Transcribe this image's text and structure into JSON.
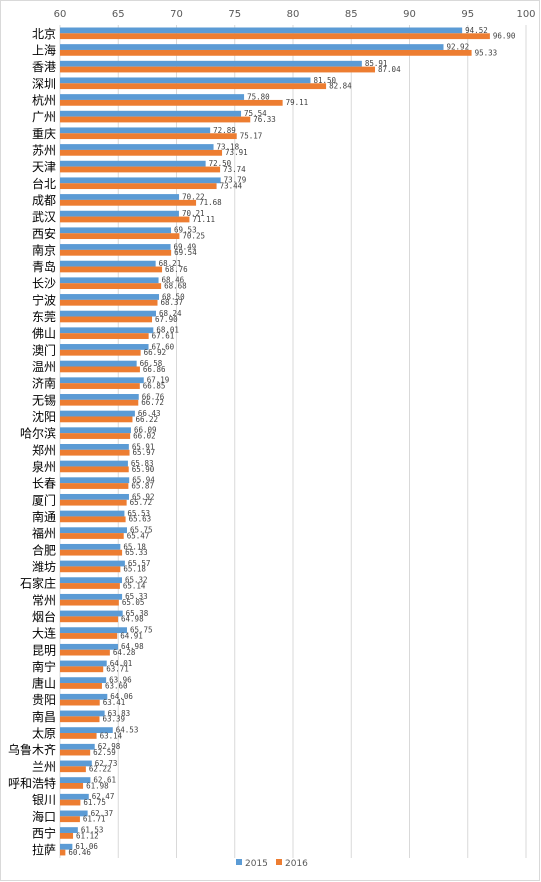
{
  "chart_data": {
    "type": "bar",
    "orientation": "horizontal",
    "xlim": [
      60,
      100
    ],
    "xticks": [
      60,
      65,
      70,
      75,
      80,
      85,
      90,
      95,
      100
    ],
    "grid": true,
    "legend_position": "bottom",
    "categories": [
      "北京",
      "上海",
      "香港",
      "深圳",
      "杭州",
      "广州",
      "重庆",
      "苏州",
      "天津",
      "台北",
      "成都",
      "武汉",
      "西安",
      "南京",
      "青岛",
      "长沙",
      "宁波",
      "东莞",
      "佛山",
      "澳门",
      "温州",
      "济南",
      "无锡",
      "沈阳",
      "哈尔滨",
      "郑州",
      "泉州",
      "长春",
      "厦门",
      "南通",
      "福州",
      "合肥",
      "潍坊",
      "石家庄",
      "常州",
      "烟台",
      "大连",
      "昆明",
      "南宁",
      "唐山",
      "贵阳",
      "南昌",
      "太原",
      "乌鲁木齐",
      "兰州",
      "呼和浩特",
      "银川",
      "海口",
      "西宁",
      "拉萨"
    ],
    "series": [
      {
        "name": "2015",
        "color": "#5b9bd5",
        "values": [
          94.52,
          92.92,
          85.91,
          81.5,
          75.8,
          75.54,
          72.89,
          73.18,
          72.5,
          73.79,
          70.22,
          70.21,
          69.53,
          69.49,
          68.21,
          68.46,
          68.5,
          68.24,
          68.01,
          67.6,
          66.58,
          67.19,
          66.76,
          66.43,
          66.09,
          65.91,
          65.83,
          65.94,
          65.92,
          65.53,
          65.75,
          65.18,
          65.57,
          65.32,
          65.33,
          65.38,
          65.75,
          64.98,
          64.01,
          63.96,
          64.06,
          63.83,
          64.53,
          62.98,
          62.73,
          62.61,
          62.47,
          62.37,
          61.53,
          61.06
        ]
      },
      {
        "name": "2016",
        "color": "#ed7d31",
        "values": [
          96.9,
          95.33,
          87.04,
          82.84,
          79.11,
          76.33,
          75.17,
          73.91,
          73.74,
          73.44,
          71.68,
          71.11,
          70.25,
          69.54,
          68.76,
          68.68,
          68.37,
          67.9,
          67.61,
          66.92,
          66.86,
          66.85,
          66.72,
          66.22,
          66.02,
          65.97,
          65.9,
          65.87,
          65.72,
          65.63,
          65.47,
          65.33,
          65.18,
          65.14,
          65.05,
          64.98,
          64.91,
          64.28,
          63.71,
          63.6,
          63.41,
          63.39,
          63.14,
          62.59,
          62.22,
          61.98,
          61.75,
          61.71,
          61.12,
          60.46
        ]
      }
    ]
  }
}
